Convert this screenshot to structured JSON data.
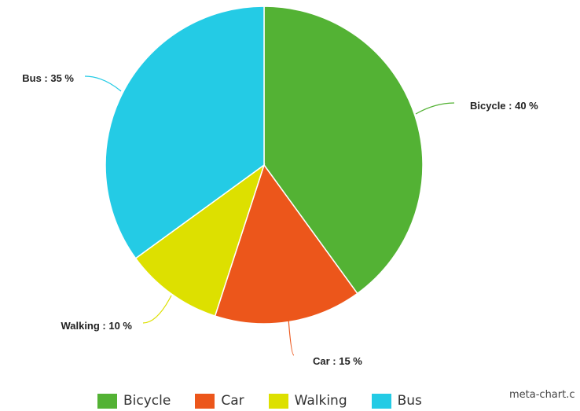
{
  "chart_data": {
    "type": "pie",
    "title": "",
    "slices": [
      {
        "name": "Bicycle",
        "value": 40,
        "label": "Bicycle : 40 %",
        "color": "#53b234"
      },
      {
        "name": "Car",
        "value": 15,
        "label": "Car : 15 %",
        "color": "#ec561b"
      },
      {
        "name": "Walking",
        "value": 10,
        "label": "Walking : 10 %",
        "color": "#dde000"
      },
      {
        "name": "Bus",
        "value": 35,
        "label": "Bus : 35 %",
        "color": "#24cbe5"
      }
    ],
    "legend_position": "bottom"
  },
  "watermark": "meta-chart.c"
}
